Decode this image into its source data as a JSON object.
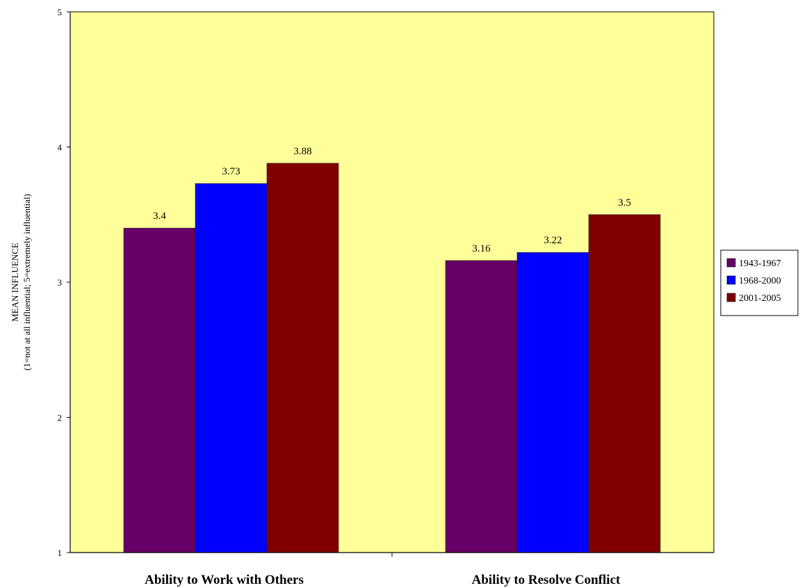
{
  "chart_data": {
    "type": "bar",
    "categories": [
      "Ability to Work with Others",
      "Ability to Resolve Conflict"
    ],
    "series": [
      {
        "name": "1943-1967",
        "values": [
          3.4,
          3.16
        ],
        "labels": [
          "3.4",
          "3.16"
        ],
        "color": "#660066"
      },
      {
        "name": "1968-2000",
        "values": [
          3.73,
          3.22
        ],
        "labels": [
          "3.73",
          "3.22"
        ],
        "color": "#0000ff"
      },
      {
        "name": "2001-2005",
        "values": [
          3.88,
          3.5
        ],
        "labels": [
          "3.88",
          "3.5"
        ],
        "color": "#800000"
      }
    ],
    "ylabel_line1": "MEAN INFLUENCE",
    "ylabel_line2": "(1=not at all influential; 5=extremely influential)",
    "ylim": [
      1,
      5
    ],
    "yticks": [
      "1",
      "2",
      "3",
      "4",
      "5"
    ],
    "plot_background": "#ffff99",
    "grid": false,
    "legend_position": "right"
  }
}
